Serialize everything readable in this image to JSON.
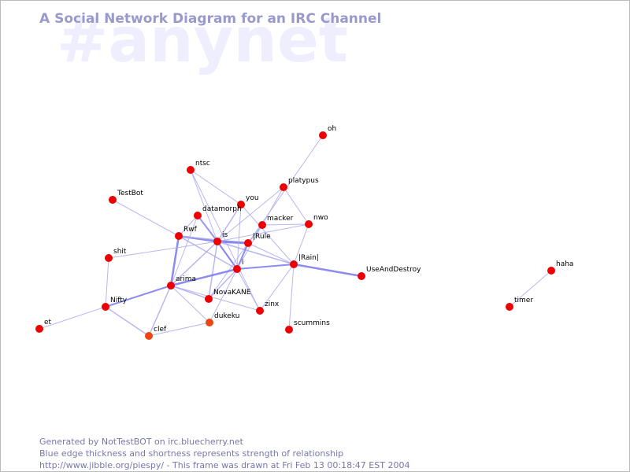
{
  "header": {
    "title": "A Social Network Diagram for an IRC Channel",
    "watermark": "#anynet"
  },
  "nodes": [
    {
      "label": "oh"
    },
    {
      "label": "ntsc"
    },
    {
      "label": "TestBot"
    },
    {
      "label": "platypus"
    },
    {
      "label": "you"
    },
    {
      "label": "datamorph"
    },
    {
      "label": "macker"
    },
    {
      "label": "nwo"
    },
    {
      "label": "Rwf"
    },
    {
      "label": "is"
    },
    {
      "label": "|Rule"
    },
    {
      "label": "shit"
    },
    {
      "label": "|Rain|"
    },
    {
      "label": "i"
    },
    {
      "label": "UseAndDestroy"
    },
    {
      "label": "arima"
    },
    {
      "label": "NovaKANE"
    },
    {
      "label": "Nifty"
    },
    {
      "label": "zinx"
    },
    {
      "label": "dukeku"
    },
    {
      "label": "et"
    },
    {
      "label": "clef"
    },
    {
      "label": "scummins"
    },
    {
      "label": "haha"
    },
    {
      "label": "timer"
    }
  ],
  "footer": {
    "lines": [
      "Generated by NotTestBOT on irc.bluecherry.net",
      "Blue edge thickness and shortness represents strength of relationship",
      "http://www.jibble.org/piespy/ - This frame was drawn at Fri Feb 13 00:18:47 EST 2004"
    ]
  }
}
